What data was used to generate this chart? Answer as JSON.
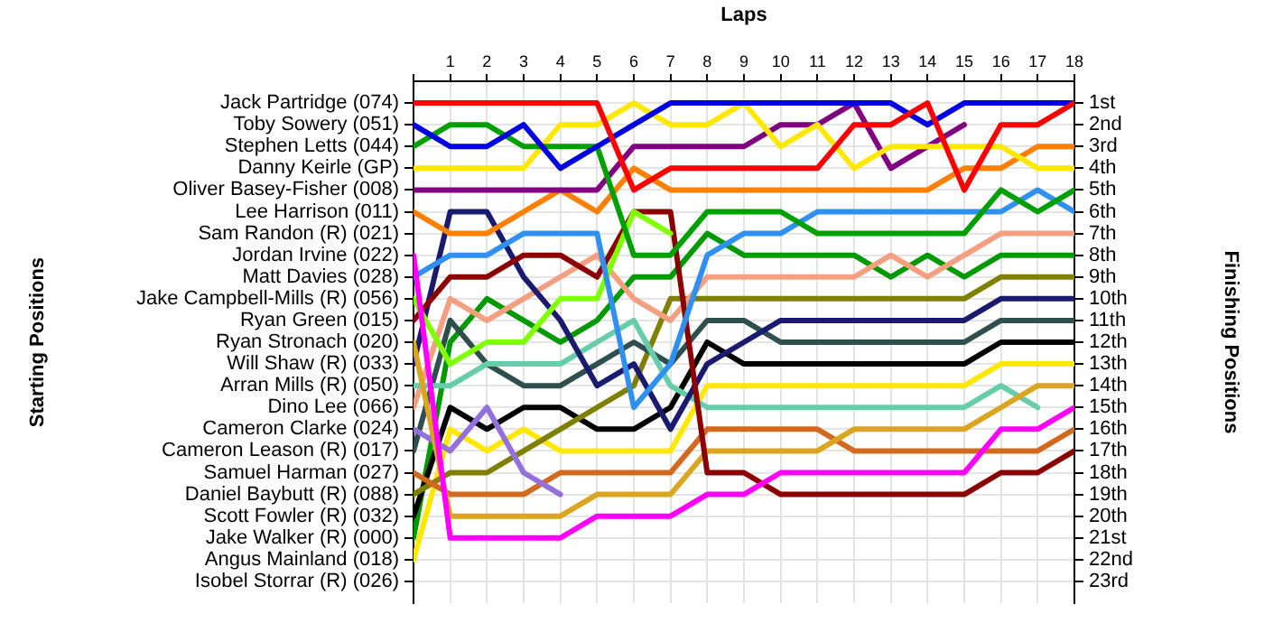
{
  "chart_data": {
    "type": "line",
    "xlabel": "Laps",
    "ylabel": "Finishing Positions",
    "x": [
      0,
      1,
      2,
      3,
      4,
      5,
      6,
      7,
      8,
      9,
      10,
      11,
      12,
      13,
      14,
      15,
      16,
      17,
      18
    ],
    "xlim": [
      0,
      18
    ],
    "xticks": [
      {
        "value": 0,
        "label": null
      },
      1,
      2,
      3,
      4,
      5,
      6,
      7,
      8,
      9,
      10,
      11,
      12,
      13,
      14,
      15,
      16,
      17,
      18
    ],
    "ylim": [
      24,
      0
    ],
    "yticks": [
      {
        "value": 1,
        "label": "1st"
      },
      {
        "value": 2,
        "label": "2nd"
      },
      {
        "value": 3,
        "label": "3rd"
      },
      {
        "value": 4,
        "label": "4th"
      },
      {
        "value": 5,
        "label": "5th"
      },
      {
        "value": 6,
        "label": "6th"
      },
      {
        "value": 7,
        "label": "7th"
      },
      {
        "value": 8,
        "label": "8th"
      },
      {
        "value": 9,
        "label": "9th"
      },
      {
        "value": 10,
        "label": "10th"
      },
      {
        "value": 11,
        "label": "11th"
      },
      {
        "value": 12,
        "label": "12th"
      },
      {
        "value": 13,
        "label": "13th"
      },
      {
        "value": 14,
        "label": "14th"
      },
      {
        "value": 15,
        "label": "15th"
      },
      {
        "value": 16,
        "label": "16th"
      },
      {
        "value": 17,
        "label": "17th"
      },
      {
        "value": 18,
        "label": "18th"
      },
      {
        "value": 19,
        "label": "19th"
      },
      {
        "value": 20,
        "label": "20th"
      },
      {
        "value": 21,
        "label": "21st"
      },
      {
        "value": 22,
        "label": "22nd"
      },
      {
        "value": 23,
        "label": "23rd"
      }
    ],
    "annotations": [
      "Jack Partridge (074)",
      "Toby Sowery (051)",
      "Stephen Letts (044)",
      "Danny Keirle (GP)",
      "Oliver Basey-Fisher (008)",
      "Lee Harrison (011)",
      "Sam Randon (R) (021)",
      "Jordan Irvine (022)",
      "Matt Davies (028)",
      "Jake Campbell-Mills (R) (056)",
      "Ryan Green (015)",
      "Ryan Stronach (020)",
      "Will Shaw (R) (033)",
      "Arran Mills (R) (050)",
      "Dino Lee (066)",
      "Cameron Clarke (024)",
      "Cameron Leason (R) (017)",
      "Samuel Harman (027)",
      "Daniel Baybutt (R) (088)",
      "Scott Fowler (R) (032)",
      "Jake Walker (R) (000)",
      "Angus Mainland (018)",
      "Isobel Storrar (R) (026)",
      "Starting Positions"
    ],
    "grid": true,
    "legend": false,
    "marker": "none",
    "series": [
      {
        "color": "#ff0000",
        "values": [
          1,
          1,
          1,
          1,
          1,
          1,
          5,
          4,
          4,
          4,
          4,
          4,
          2,
          2,
          1,
          5,
          2,
          2,
          1
        ]
      },
      {
        "color": "#0000e0",
        "values": [
          2,
          3,
          3,
          2,
          4,
          3,
          2,
          1,
          1,
          1,
          1,
          1,
          1,
          1,
          2,
          1,
          1,
          1,
          1
        ]
      },
      {
        "color": "#00a000",
        "values": [
          3,
          2,
          2,
          3,
          3,
          3,
          8,
          8,
          6,
          6,
          6,
          7,
          7,
          7,
          7,
          7,
          5,
          6,
          5
        ]
      },
      {
        "color": "#ffe800",
        "values": [
          4,
          4,
          4,
          4,
          2,
          2,
          1,
          2,
          2,
          1,
          3,
          2,
          4,
          3,
          3,
          3,
          3,
          4,
          4
        ]
      },
      {
        "color": "#800080",
        "values": [
          5,
          5,
          5,
          5,
          5,
          5,
          3,
          3,
          3,
          3,
          2,
          2,
          1,
          4,
          3,
          2,
          null,
          null,
          null
        ]
      },
      {
        "color": "#ff8000",
        "values": [
          6,
          7,
          7,
          6,
          5,
          6,
          4,
          5,
          5,
          5,
          5,
          5,
          5,
          5,
          5,
          4,
          4,
          3,
          3
        ]
      },
      {
        "color": "#ff00ff",
        "values": [
          8,
          21,
          21,
          21,
          21,
          20,
          20,
          20,
          19,
          19,
          18,
          18,
          18,
          18,
          18,
          18,
          16,
          16,
          15
        ]
      },
      {
        "color": "#3090f0",
        "values": [
          9,
          8,
          8,
          7,
          7,
          7,
          15,
          13,
          8,
          7,
          7,
          6,
          6,
          6,
          6,
          6,
          6,
          5,
          6
        ]
      },
      {
        "color": "#7fff00",
        "values": [
          10,
          13,
          12,
          12,
          10,
          10,
          6,
          7,
          null,
          null,
          null,
          null,
          null,
          null,
          null,
          null,
          null,
          null,
          null
        ]
      },
      {
        "color": "#8b0000",
        "values": [
          11,
          9,
          9,
          8,
          8,
          9,
          6,
          6,
          18,
          18,
          19,
          19,
          19,
          19,
          19,
          19,
          18,
          18,
          17
        ]
      },
      {
        "color": "#daa520",
        "values": [
          12,
          20,
          20,
          20,
          20,
          19,
          19,
          19,
          17,
          17,
          17,
          17,
          16,
          16,
          16,
          16,
          15,
          14,
          14
        ]
      },
      {
        "color": "#1a1a6e",
        "values": [
          13,
          6,
          6,
          9,
          11,
          14,
          13,
          16,
          13,
          12,
          11,
          11,
          11,
          11,
          11,
          11,
          10,
          10,
          10
        ]
      },
      {
        "color": "#66cdaa",
        "values": [
          14,
          14,
          13,
          13,
          13,
          12,
          11,
          14,
          15,
          15,
          15,
          15,
          15,
          15,
          15,
          15,
          14,
          15,
          null
        ]
      },
      {
        "color": "#f4a080",
        "values": [
          15,
          10,
          11,
          10,
          9,
          8,
          10,
          11,
          9,
          9,
          9,
          9,
          9,
          8,
          9,
          8,
          7,
          7,
          7
        ]
      },
      {
        "color": "#9370db",
        "values": [
          16,
          17,
          15,
          18,
          19,
          null,
          null,
          null,
          null,
          null,
          null,
          null,
          null,
          null,
          null,
          null,
          null,
          null,
          null
        ]
      },
      {
        "color": "#2f4f4f",
        "values": [
          17,
          11,
          13,
          14,
          14,
          13,
          12,
          13,
          11,
          11,
          12,
          12,
          12,
          12,
          12,
          12,
          11,
          11,
          11
        ]
      },
      {
        "color": "#d2691e",
        "values": [
          18,
          19,
          19,
          19,
          18,
          18,
          18,
          18,
          16,
          16,
          16,
          16,
          17,
          17,
          17,
          17,
          17,
          17,
          16
        ]
      },
      {
        "color": "#808000",
        "values": [
          19,
          18,
          18,
          17,
          16,
          15,
          14,
          10,
          10,
          10,
          10,
          10,
          10,
          10,
          10,
          10,
          9,
          9,
          9
        ]
      },
      {
        "color": "#000000",
        "values": [
          20,
          15,
          16,
          15,
          15,
          16,
          16,
          15,
          12,
          13,
          13,
          13,
          13,
          13,
          13,
          13,
          12,
          12,
          12
        ]
      },
      {
        "color": "#009900",
        "values": [
          21,
          12,
          10,
          11,
          12,
          11,
          9,
          9,
          7,
          8,
          8,
          8,
          8,
          9,
          8,
          9,
          8,
          8,
          8
        ]
      },
      {
        "color": "#ffe800",
        "values": [
          22,
          16,
          17,
          16,
          17,
          17,
          17,
          17,
          14,
          14,
          14,
          14,
          14,
          14,
          14,
          14,
          13,
          13,
          13
        ]
      }
    ]
  }
}
